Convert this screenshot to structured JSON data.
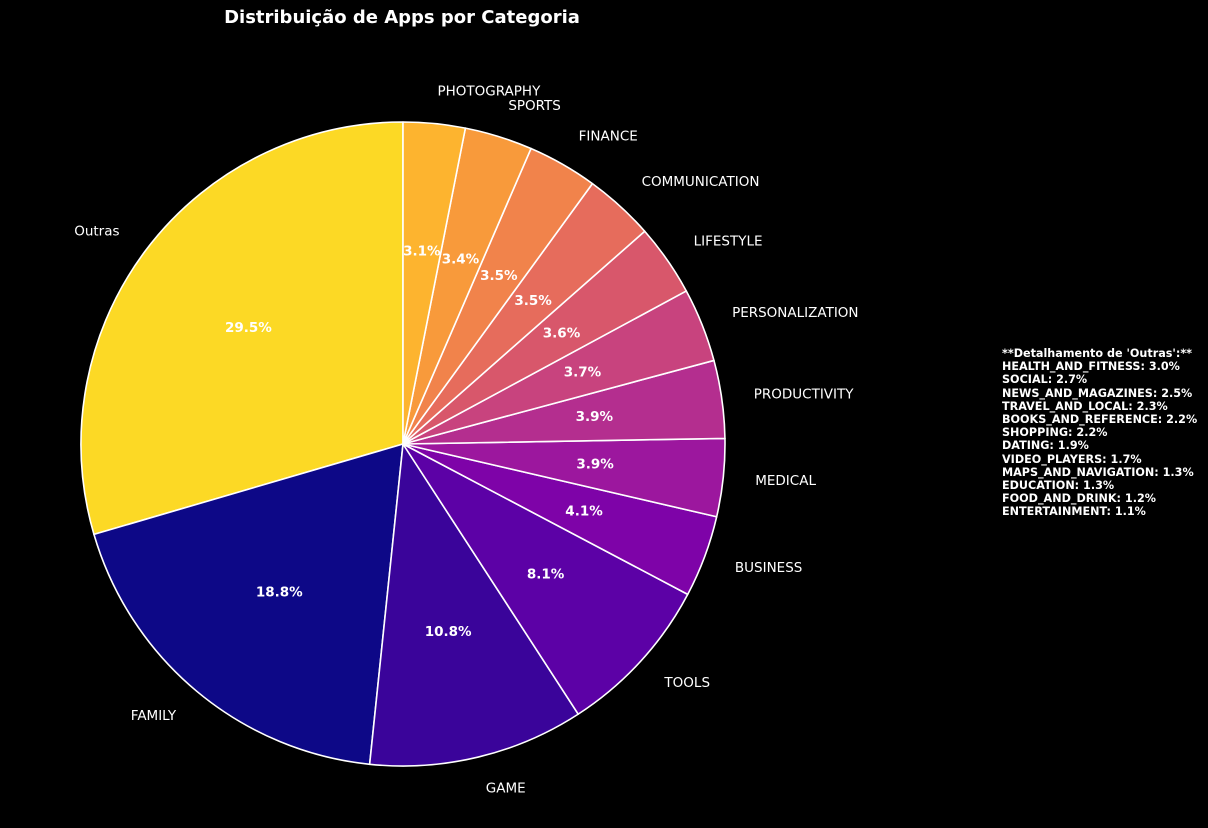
{
  "chart_data": {
    "type": "pie",
    "title": "Distribuição de Apps por Categoria",
    "start_angle_deg": 90,
    "direction": "counterclockwise",
    "slices": [
      {
        "label": "Outras",
        "value": 29.5,
        "pct_label": "29.5%",
        "color": "#fcd925"
      },
      {
        "label": "FAMILY",
        "value": 18.8,
        "pct_label": "18.8%",
        "color": "#0d0887"
      },
      {
        "label": "GAME",
        "value": 10.8,
        "pct_label": "10.8%",
        "color": "#3a049a"
      },
      {
        "label": "TOOLS",
        "value": 8.1,
        "pct_label": "8.1%",
        "color": "#5c01a6"
      },
      {
        "label": "BUSINESS",
        "value": 4.1,
        "pct_label": "4.1%",
        "color": "#7e03a8"
      },
      {
        "label": "MEDICAL",
        "value": 3.9,
        "pct_label": "3.9%",
        "color": "#9c179e"
      },
      {
        "label": "PRODUCTIVITY",
        "value": 3.9,
        "pct_label": "3.9%",
        "color": "#b42e8f"
      },
      {
        "label": "PERSONALIZATION",
        "value": 3.7,
        "pct_label": "3.7%",
        "color": "#c8437e"
      },
      {
        "label": "LIFESTYLE",
        "value": 3.6,
        "pct_label": "3.6%",
        "color": "#d8576b"
      },
      {
        "label": "COMMUNICATION",
        "value": 3.5,
        "pct_label": "3.5%",
        "color": "#e66c5c"
      },
      {
        "label": "FINANCE",
        "value": 3.5,
        "pct_label": "3.5%",
        "color": "#f1834b"
      },
      {
        "label": "SPORTS",
        "value": 3.4,
        "pct_label": "3.4%",
        "color": "#f89a3b"
      },
      {
        "label": "PHOTOGRAPHY",
        "value": 3.1,
        "pct_label": "3.1%",
        "color": "#fdb42f"
      }
    ],
    "others_breakdown": {
      "heading": "**Detalhamento de 'Outras':**",
      "lines": [
        "HEALTH_AND_FITNESS: 3.0%",
        "SOCIAL: 2.7%",
        "NEWS_AND_MAGAZINES: 2.5%",
        "TRAVEL_AND_LOCAL: 2.3%",
        "BOOKS_AND_REFERENCE: 2.2%",
        "SHOPPING: 2.2%",
        "DATING: 1.9%",
        "VIDEO_PLAYERS: 1.7%",
        "MAPS_AND_NAVIGATION: 1.3%",
        "EDUCATION: 1.3%",
        "FOOD_AND_DRINK: 1.2%",
        "ENTERTAINMENT: 1.1%"
      ]
    }
  }
}
